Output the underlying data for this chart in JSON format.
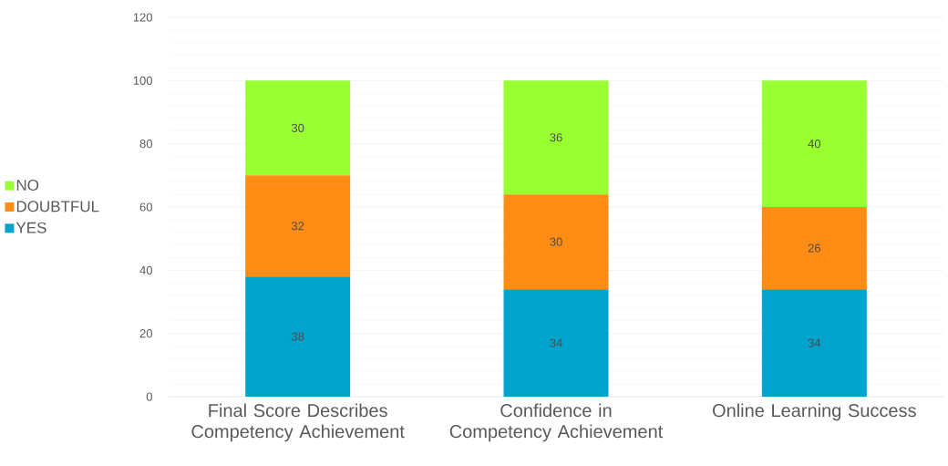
{
  "chart_data": {
    "type": "bar",
    "stacked": true,
    "categories": [
      "Final Score Describes Competency Achievement",
      "Confidence in Competency Achievement",
      "Online Learning Success"
    ],
    "series": [
      {
        "name": "YES",
        "color": "#00a3cc",
        "values": [
          38,
          34,
          34
        ]
      },
      {
        "name": "DOUBTFUL",
        "color": "#ff8c14",
        "values": [
          32,
          30,
          26
        ]
      },
      {
        "name": "NO",
        "color": "#99ff33",
        "values": [
          30,
          36,
          40
        ]
      }
    ],
    "ylim": [
      0,
      120
    ],
    "yticks": [
      0,
      20,
      40,
      60,
      80,
      100,
      120
    ],
    "grid": "y",
    "legend": "left",
    "data_labels": true
  }
}
